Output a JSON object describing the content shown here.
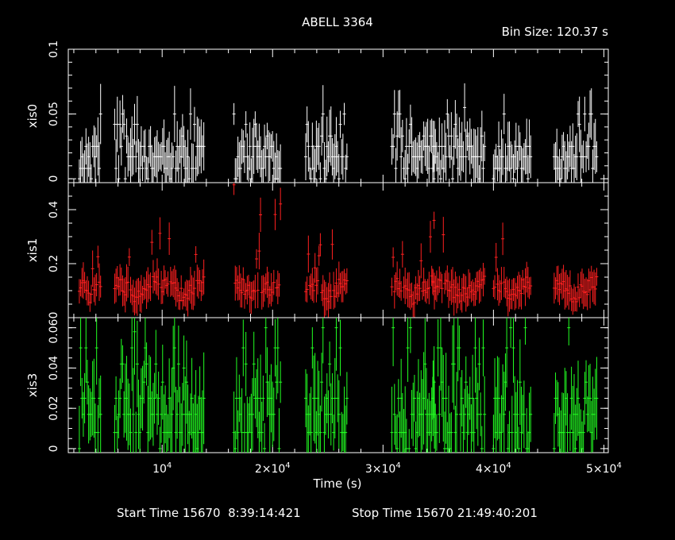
{
  "chart_data": {
    "type": "scatter",
    "title": "ABELL 3364",
    "bin_size_label": "Bin Size: 120.37 s",
    "xlabel": "Time (s)",
    "xlim": [
      1500,
      50400
    ],
    "x_ticks": [
      {
        "value": 10000,
        "mantissa": "",
        "exp": "4",
        "prefix": "10"
      },
      {
        "value": 20000,
        "mantissa": "2×",
        "exp": "4",
        "prefix": "10"
      },
      {
        "value": 30000,
        "mantissa": "3×",
        "exp": "4",
        "prefix": "10"
      },
      {
        "value": 40000,
        "mantissa": "4×",
        "exp": "4",
        "prefix": "10"
      },
      {
        "value": 50000,
        "mantissa": "5×",
        "exp": "4",
        "prefix": "10"
      }
    ],
    "x_minor_step": 2000,
    "segments": [
      [
        2500,
        4500
      ],
      [
        5700,
        9700
      ],
      [
        8700,
        9700
      ],
      [
        9800,
        13800
      ],
      [
        16500,
        20800
      ],
      [
        23000,
        26800
      ],
      [
        30800,
        34700
      ],
      [
        34500,
        39300
      ],
      [
        43400,
        43400
      ],
      [
        40000,
        43400
      ],
      [
        45500,
        49400
      ]
    ],
    "footer": {
      "start_label": "Start Time 15670  8:39:14:421",
      "stop_label": "Stop Time 15670 21:49:40:201"
    },
    "panels": [
      {
        "name": "xis0",
        "ylabel": "xis0",
        "color": "#ffffff",
        "ylim": [
          -0.003,
          0.1
        ],
        "yticks": [
          0,
          0.05,
          0.1
        ],
        "ytick_labels": [
          "0",
          "0.05",
          "0.1"
        ],
        "y_minor_step": 0.01,
        "quantum": 0.0083,
        "levels": [
          0.008,
          0.017,
          0.025
        ],
        "spike_levels": [
          0.033,
          0.042,
          0.05
        ],
        "max_vals": [
          0.04,
          0.1,
          0.05,
          0.07,
          0.06,
          0.07,
          0.055,
          0.06,
          0.08
        ],
        "seed": 11
      },
      {
        "name": "xis1",
        "ylabel": "xis1",
        "color": "#ff2020",
        "ylim": [
          0.0,
          0.5
        ],
        "yticks": [
          0.2,
          0.4
        ],
        "ytick_labels": [
          "0.2",
          "0.4"
        ],
        "y_minor_step": 0.05,
        "quantum": 0.0083,
        "levels": [
          0.08,
          0.1,
          0.12
        ],
        "spike_levels": [
          0.18,
          0.22,
          0.26
        ],
        "max_vals": [
          0.2,
          0.3,
          0.28,
          0.48,
          0.2,
          0.28,
          0.5,
          0.45,
          0.48
        ],
        "seed": 23
      },
      {
        "name": "xis3",
        "ylabel": "xis3",
        "color": "#22ff22",
        "ylim": [
          -0.002,
          0.065
        ],
        "yticks": [
          0,
          0.02,
          0.04,
          0.06
        ],
        "ytick_labels": [
          "0",
          "0.02",
          "0.04",
          "0.060"
        ],
        "y_minor_step": 0.005,
        "quantum": 0.0083,
        "levels": [
          0.008,
          0.017,
          0.025
        ],
        "spike_levels": [
          0.033,
          0.042,
          0.05
        ],
        "max_vals": [
          0.05,
          0.058,
          0.04,
          0.06,
          0.06,
          0.06,
          0.058,
          0.06,
          0.06
        ],
        "seed": 37
      }
    ]
  }
}
